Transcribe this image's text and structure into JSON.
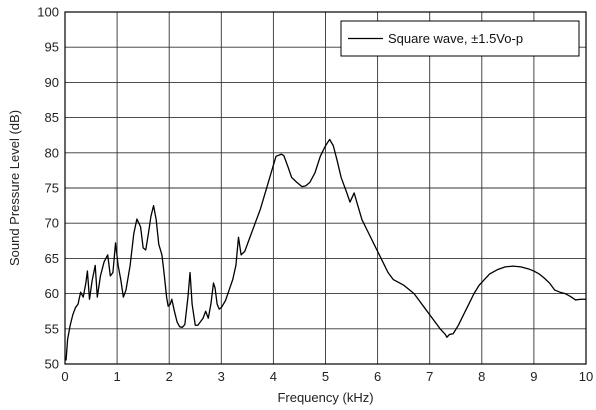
{
  "chart_data": {
    "type": "line",
    "xlabel": "Frequency (kHz)",
    "ylabel": "Sound Pressure Level (dB)",
    "xlim": [
      0,
      10
    ],
    "ylim": [
      50,
      100
    ],
    "xticks": [
      "0",
      "1",
      "2",
      "3",
      "4",
      "5",
      "6",
      "7",
      "8",
      "9",
      "10"
    ],
    "yticks": [
      "50",
      "55",
      "60",
      "65",
      "70",
      "75",
      "80",
      "85",
      "90",
      "95",
      "100"
    ],
    "grid": true,
    "legend_position": "top-right",
    "series": [
      {
        "name": "Square wave, ±1.5Vo-p",
        "color": "#000000",
        "points": [
          [
            0.02,
            50.5
          ],
          [
            0.05,
            53.5
          ],
          [
            0.1,
            55.5
          ],
          [
            0.15,
            57.0
          ],
          [
            0.2,
            58.0
          ],
          [
            0.25,
            58.5
          ],
          [
            0.3,
            60.2
          ],
          [
            0.35,
            59.5
          ],
          [
            0.4,
            61.5
          ],
          [
            0.43,
            63.2
          ],
          [
            0.47,
            59.2
          ],
          [
            0.52,
            61.8
          ],
          [
            0.58,
            64.0
          ],
          [
            0.62,
            59.5
          ],
          [
            0.68,
            62.5
          ],
          [
            0.75,
            64.5
          ],
          [
            0.82,
            65.5
          ],
          [
            0.87,
            62.5
          ],
          [
            0.92,
            63.0
          ],
          [
            0.97,
            67.2
          ],
          [
            1.02,
            64.0
          ],
          [
            1.07,
            62.0
          ],
          [
            1.12,
            59.5
          ],
          [
            1.17,
            60.5
          ],
          [
            1.25,
            64.0
          ],
          [
            1.32,
            68.5
          ],
          [
            1.38,
            70.6
          ],
          [
            1.45,
            69.5
          ],
          [
            1.5,
            66.5
          ],
          [
            1.55,
            66.2
          ],
          [
            1.6,
            68.5
          ],
          [
            1.65,
            71.0
          ],
          [
            1.7,
            72.5
          ],
          [
            1.75,
            70.5
          ],
          [
            1.8,
            67.0
          ],
          [
            1.86,
            65.5
          ],
          [
            1.9,
            63.0
          ],
          [
            1.95,
            59.5
          ],
          [
            1.98,
            58.2
          ],
          [
            2.02,
            58.5
          ],
          [
            2.05,
            59.2
          ],
          [
            2.1,
            57.5
          ],
          [
            2.15,
            56.0
          ],
          [
            2.2,
            55.3
          ],
          [
            2.25,
            55.2
          ],
          [
            2.3,
            55.6
          ],
          [
            2.36,
            59.5
          ],
          [
            2.4,
            63.0
          ],
          [
            2.44,
            58.5
          ],
          [
            2.5,
            55.5
          ],
          [
            2.55,
            55.5
          ],
          [
            2.6,
            56.0
          ],
          [
            2.65,
            56.5
          ],
          [
            2.7,
            57.5
          ],
          [
            2.75,
            56.5
          ],
          [
            2.8,
            58.5
          ],
          [
            2.85,
            61.5
          ],
          [
            2.88,
            60.8
          ],
          [
            2.92,
            58.5
          ],
          [
            2.96,
            57.8
          ],
          [
            3.0,
            58.0
          ],
          [
            3.08,
            59.0
          ],
          [
            3.15,
            60.5
          ],
          [
            3.22,
            62.0
          ],
          [
            3.28,
            64.0
          ],
          [
            3.33,
            68.0
          ],
          [
            3.38,
            65.5
          ],
          [
            3.45,
            66.0
          ],
          [
            3.55,
            68.0
          ],
          [
            3.65,
            70.0
          ],
          [
            3.75,
            72.0
          ],
          [
            3.85,
            74.5
          ],
          [
            3.95,
            77.0
          ],
          [
            4.05,
            79.5
          ],
          [
            4.15,
            79.8
          ],
          [
            4.2,
            79.6
          ],
          [
            4.28,
            78.0
          ],
          [
            4.35,
            76.5
          ],
          [
            4.45,
            75.8
          ],
          [
            4.55,
            75.2
          ],
          [
            4.62,
            75.3
          ],
          [
            4.7,
            75.8
          ],
          [
            4.8,
            77.2
          ],
          [
            4.9,
            79.5
          ],
          [
            5.0,
            81.0
          ],
          [
            5.08,
            81.9
          ],
          [
            5.15,
            81.0
          ],
          [
            5.22,
            79.0
          ],
          [
            5.3,
            76.5
          ],
          [
            5.4,
            74.5
          ],
          [
            5.47,
            73.0
          ],
          [
            5.55,
            74.3
          ],
          [
            5.62,
            72.5
          ],
          [
            5.7,
            70.5
          ],
          [
            5.8,
            69.0
          ],
          [
            5.9,
            67.5
          ],
          [
            6.0,
            66.0
          ],
          [
            6.1,
            64.5
          ],
          [
            6.2,
            63.0
          ],
          [
            6.3,
            62.0
          ],
          [
            6.4,
            61.6
          ],
          [
            6.5,
            61.2
          ],
          [
            6.6,
            60.6
          ],
          [
            6.7,
            60.0
          ],
          [
            6.8,
            59.0
          ],
          [
            6.9,
            58.0
          ],
          [
            7.0,
            57.0
          ],
          [
            7.1,
            56.0
          ],
          [
            7.2,
            55.0
          ],
          [
            7.3,
            54.2
          ],
          [
            7.33,
            53.8
          ],
          [
            7.38,
            54.2
          ],
          [
            7.45,
            54.3
          ],
          [
            7.55,
            55.5
          ],
          [
            7.65,
            57.0
          ],
          [
            7.75,
            58.5
          ],
          [
            7.85,
            60.0
          ],
          [
            7.95,
            61.2
          ],
          [
            8.05,
            62.0
          ],
          [
            8.15,
            62.8
          ],
          [
            8.3,
            63.4
          ],
          [
            8.45,
            63.8
          ],
          [
            8.6,
            63.9
          ],
          [
            8.75,
            63.8
          ],
          [
            8.9,
            63.5
          ],
          [
            9.0,
            63.2
          ],
          [
            9.1,
            62.8
          ],
          [
            9.2,
            62.2
          ],
          [
            9.3,
            61.5
          ],
          [
            9.4,
            60.5
          ],
          [
            9.5,
            60.2
          ],
          [
            9.6,
            60.0
          ],
          [
            9.7,
            59.6
          ],
          [
            9.8,
            59.1
          ],
          [
            9.9,
            59.2
          ],
          [
            10.0,
            59.2
          ]
        ]
      }
    ]
  }
}
